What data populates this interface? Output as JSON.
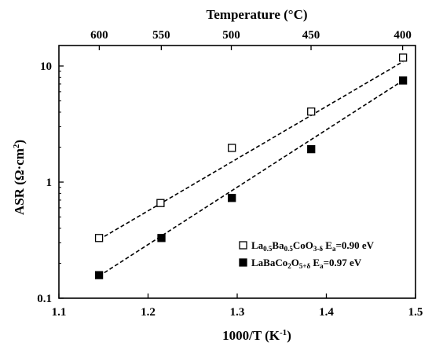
{
  "chart_data": {
    "type": "scatter",
    "x_axis": {
      "label_main": "1000/T (K",
      "label_sup": "-1",
      "label_end": ")",
      "range": [
        1.1,
        1.5
      ],
      "ticks": [
        1.1,
        1.2,
        1.3,
        1.4,
        1.5
      ],
      "tick_labels": [
        "1.1",
        "1.2",
        "1.3",
        "1.4",
        "1.5"
      ]
    },
    "y_axis": {
      "label_main": "ASR (Ω·cm",
      "label_sup": "2",
      "label_end": ")",
      "scale": "log",
      "range": [
        0.1,
        15
      ],
      "ticks": [
        0.1,
        1,
        10
      ],
      "tick_labels": [
        "0.1",
        "1",
        "10"
      ]
    },
    "top_axis": {
      "label": "Temperature (°C)",
      "ticks": [
        600,
        550,
        500,
        450,
        400
      ],
      "tick_labels": [
        "600",
        "550",
        "500",
        "450",
        "400"
      ]
    },
    "grid": false,
    "legend_position": "bottom-right",
    "series": [
      {
        "name_base": "La",
        "name_sub1": "0.5",
        "name_mid1": "Ba",
        "name_sub2": "0.5",
        "name_mid2": "CoO",
        "name_sub3": "3-δ",
        "name_mid3": " E",
        "name_sub4": "a",
        "name_end": "=0.90 eV",
        "marker": "open-square",
        "color": "#000000",
        "x": [
          1.145,
          1.214,
          1.294,
          1.383,
          1.486
        ],
        "y": [
          0.33,
          0.66,
          1.97,
          4.05,
          11.8
        ],
        "fit": {
          "x": [
            1.145,
            1.486
          ],
          "y": [
            0.32,
            10.9
          ]
        }
      },
      {
        "name_base": "LaBaCo",
        "name_sub1": "2",
        "name_mid1": "O",
        "name_sub2": "5+δ",
        "name_mid2": " E",
        "name_sub3": "a",
        "name_end": "=0.97 eV",
        "marker": "filled-square",
        "color": "#000000",
        "x": [
          1.145,
          1.215,
          1.294,
          1.383,
          1.486
        ],
        "y": [
          0.158,
          0.33,
          0.73,
          1.92,
          7.5
        ],
        "fit": {
          "x": [
            1.145,
            1.486
          ],
          "y": [
            0.155,
            7.5
          ]
        }
      }
    ]
  }
}
